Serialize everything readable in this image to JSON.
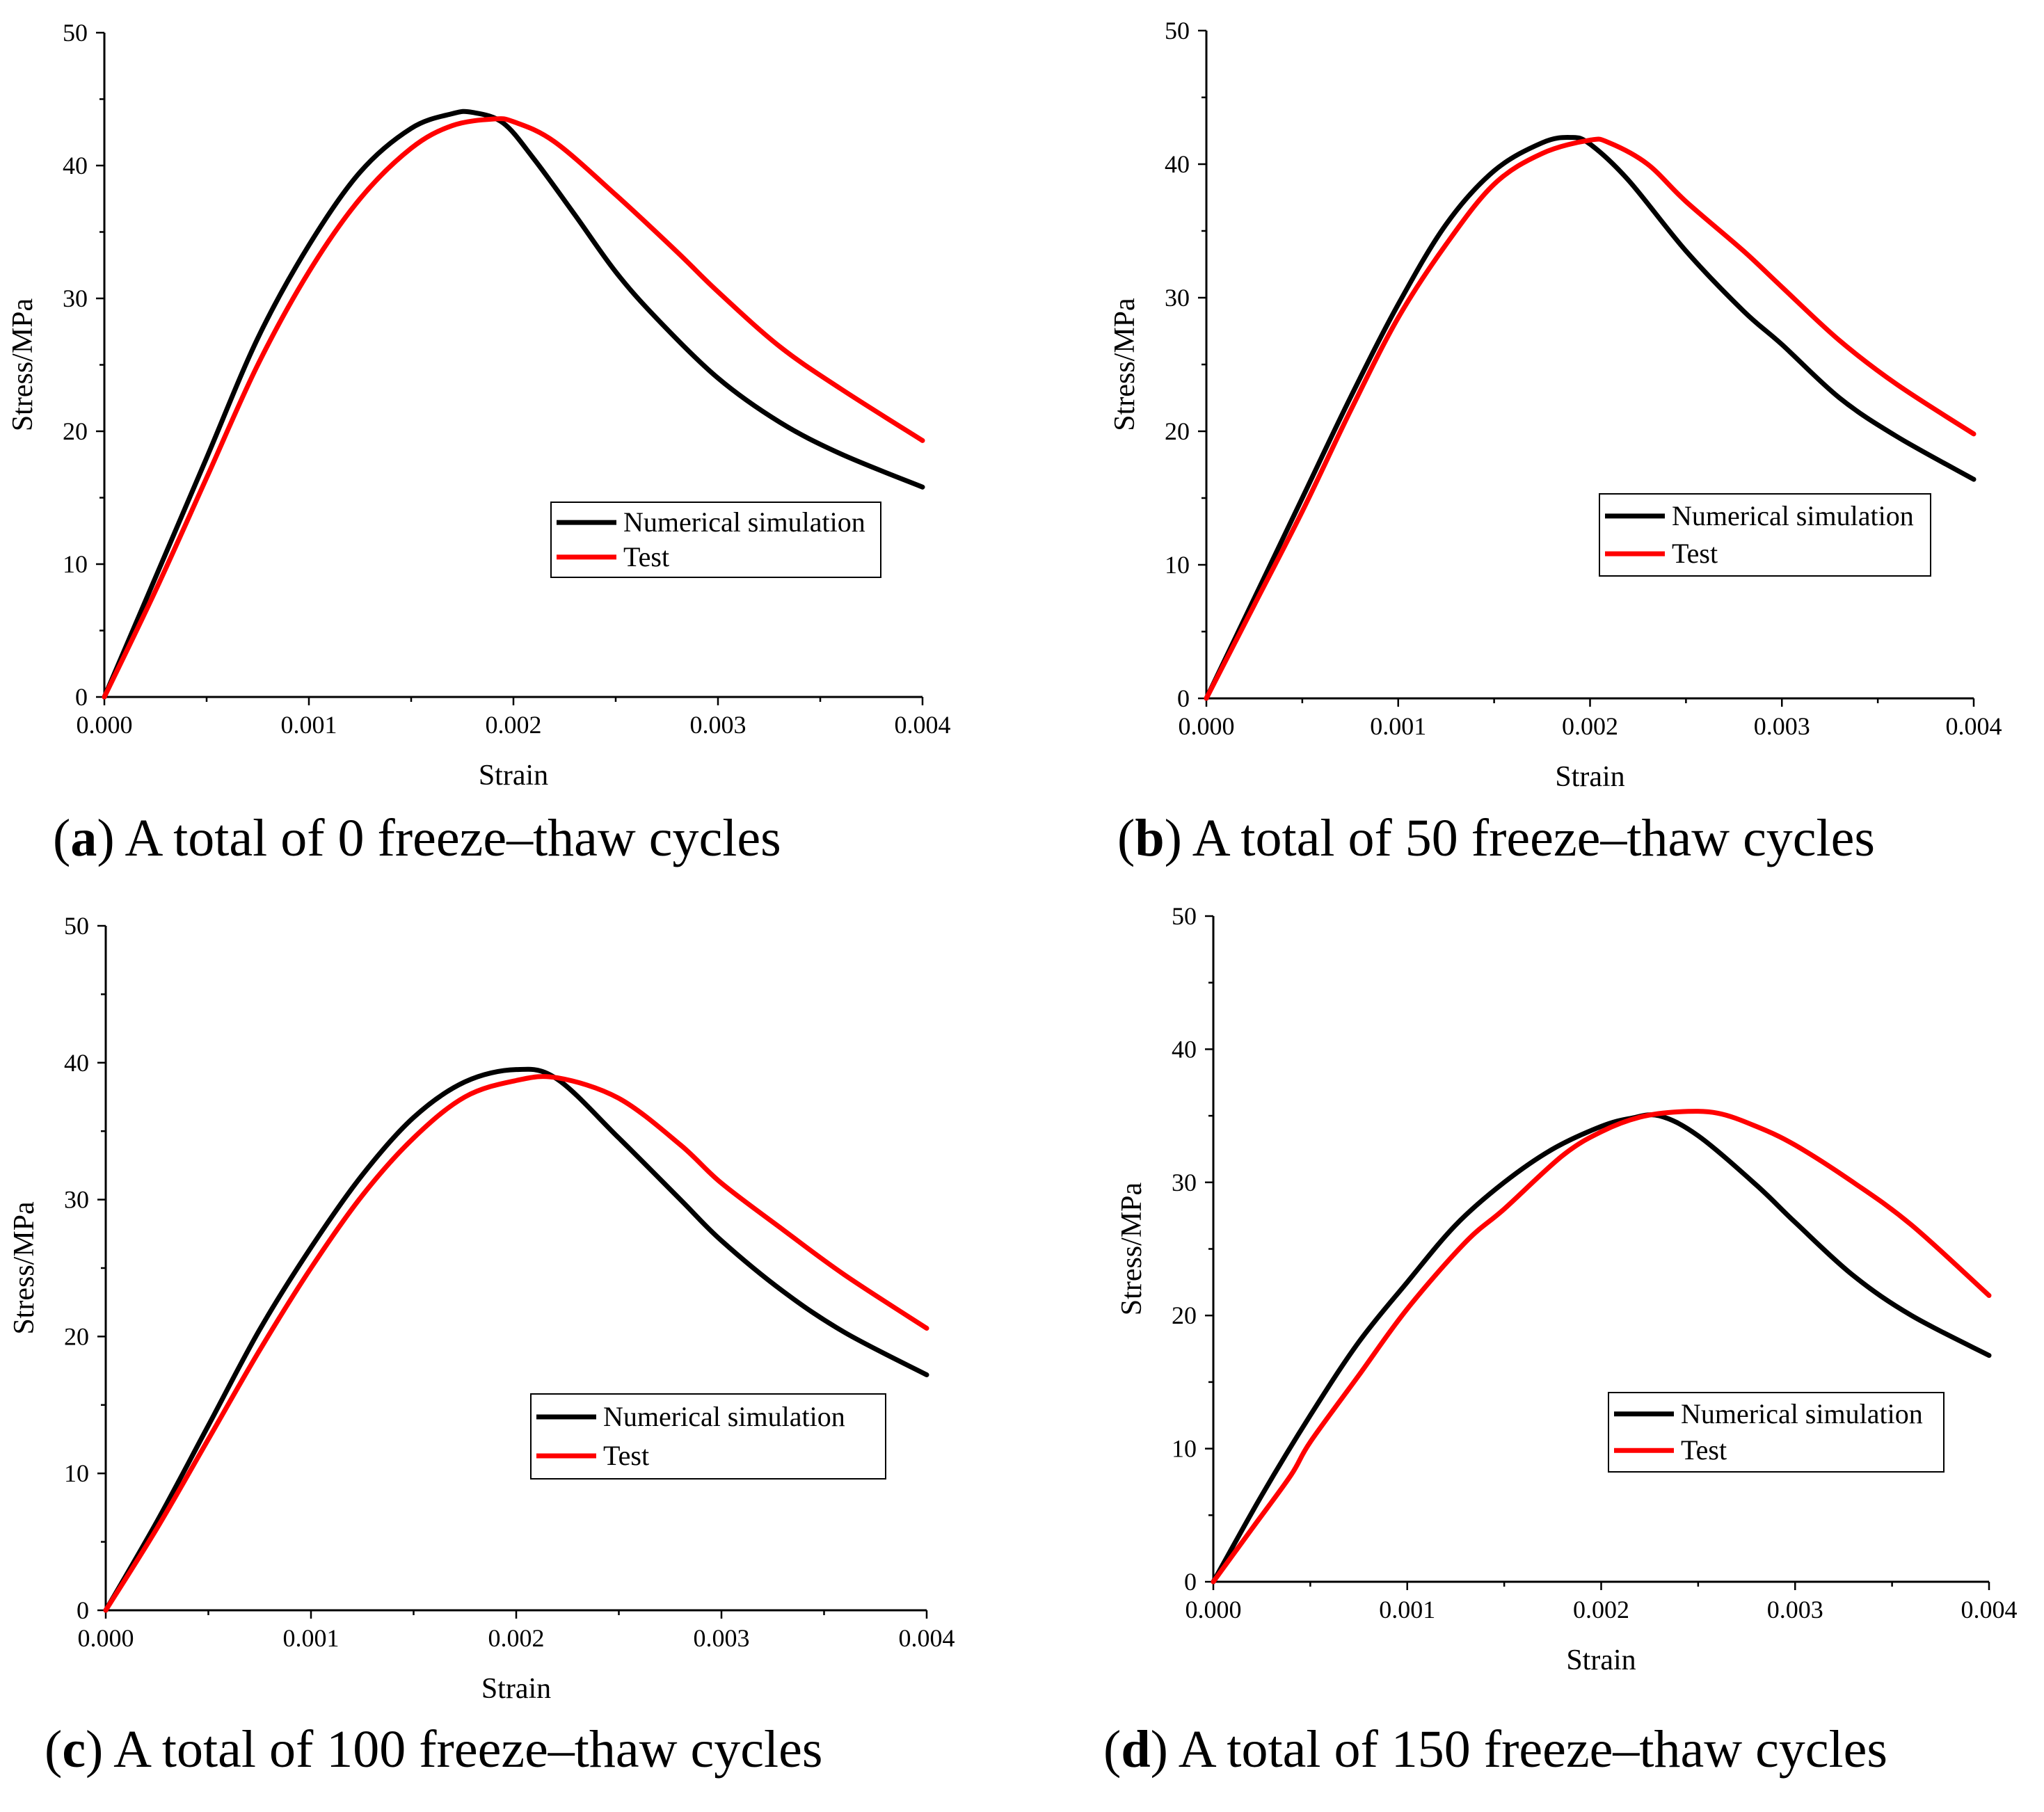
{
  "chart_data": [
    {
      "type": "line",
      "panel_letter": "a",
      "caption": "A total of 0 freeze–thaw cycles",
      "xlabel": "Strain",
      "ylabel": "Stress/MPa",
      "xlim": [
        0,
        0.004
      ],
      "ylim": [
        0,
        50
      ],
      "xticks": [
        "0.000",
        "0.001",
        "0.002",
        "0.003",
        "0.004"
      ],
      "yticks": [
        "0",
        "10",
        "20",
        "30",
        "40",
        "50"
      ],
      "legend": [
        "Numerical simulation",
        "Test"
      ],
      "series": [
        {
          "name": "Numerical simulation",
          "color": "#000000",
          "x": [
            0,
            0.00025,
            0.0005,
            0.00075,
            0.001,
            0.00125,
            0.0015,
            0.0017,
            0.0018,
            0.00195,
            0.0021,
            0.0023,
            0.0025,
            0.0027,
            0.003,
            0.0033,
            0.0036,
            0.004
          ],
          "y": [
            0,
            9,
            18,
            27,
            34,
            39.5,
            42.8,
            43.9,
            44.0,
            43.2,
            40.5,
            36.3,
            32,
            28.5,
            24,
            20.7,
            18.3,
            15.8
          ]
        },
        {
          "name": "Test",
          "color": "#ff0000",
          "x": [
            0,
            0.00025,
            0.0005,
            0.00075,
            0.001,
            0.00125,
            0.0015,
            0.0017,
            0.0019,
            0.002,
            0.0022,
            0.0025,
            0.0028,
            0.003,
            0.0033,
            0.0036,
            0.004
          ],
          "y": [
            0,
            8,
            16.5,
            25,
            32,
            37.5,
            41.3,
            43,
            43.5,
            43.3,
            41.8,
            37.8,
            33.5,
            30.5,
            26.4,
            23.2,
            19.3
          ]
        }
      ]
    },
    {
      "type": "line",
      "panel_letter": "b",
      "caption": "A total of 50 freeze–thaw cycles",
      "xlabel": "Strain",
      "ylabel": "Stress/MPa",
      "xlim": [
        0,
        0.004
      ],
      "ylim": [
        0,
        50
      ],
      "xticks": [
        "0.000",
        "0.001",
        "0.002",
        "0.003",
        "0.004"
      ],
      "yticks": [
        "0",
        "10",
        "20",
        "30",
        "40",
        "50"
      ],
      "legend": [
        "Numerical simulation",
        "Test"
      ],
      "series": [
        {
          "name": "Numerical simulation",
          "color": "#000000",
          "x": [
            0,
            0.00025,
            0.0005,
            0.00075,
            0.001,
            0.00125,
            0.0015,
            0.00175,
            0.0019,
            0.002,
            0.0022,
            0.0025,
            0.0028,
            0.003,
            0.0033,
            0.0036,
            0.004
          ],
          "y": [
            0,
            7.5,
            15,
            22.5,
            29.5,
            35.5,
            39.5,
            41.6,
            42.0,
            41.5,
            38.8,
            33.5,
            29,
            26.5,
            22.5,
            19.6,
            16.4
          ]
        },
        {
          "name": "Test",
          "color": "#ff0000",
          "x": [
            0,
            0.00025,
            0.0005,
            0.00075,
            0.001,
            0.00125,
            0.0015,
            0.00175,
            0.002,
            0.0021,
            0.0023,
            0.0025,
            0.0028,
            0.003,
            0.0033,
            0.0036,
            0.004
          ],
          "y": [
            0,
            7,
            14,
            21.5,
            28.5,
            34,
            38.5,
            40.8,
            41.8,
            41.6,
            40,
            37.2,
            33.5,
            30.8,
            26.8,
            23.5,
            19.8
          ]
        }
      ]
    },
    {
      "type": "line",
      "panel_letter": "c",
      "caption": "A total of 100 freeze–thaw cycles",
      "xlabel": "Strain",
      "ylabel": "Stress/MPa",
      "xlim": [
        0,
        0.004
      ],
      "ylim": [
        0,
        50
      ],
      "xticks": [
        "0.000",
        "0.001",
        "0.002",
        "0.003",
        "0.004"
      ],
      "yticks": [
        "0",
        "10",
        "20",
        "30",
        "40",
        "50"
      ],
      "legend": [
        "Numerical simulation",
        "Test"
      ],
      "series": [
        {
          "name": "Numerical simulation",
          "color": "#000000",
          "x": [
            0,
            0.00025,
            0.0005,
            0.00075,
            0.001,
            0.00125,
            0.0015,
            0.00175,
            0.002,
            0.0022,
            0.0025,
            0.0028,
            0.003,
            0.0033,
            0.0036,
            0.004
          ],
          "y": [
            0,
            6.5,
            13.5,
            20.5,
            26.5,
            31.8,
            36,
            38.6,
            39.5,
            38.8,
            34.5,
            30,
            27,
            23.3,
            20.3,
            17.2
          ]
        },
        {
          "name": "Test",
          "color": "#ff0000",
          "x": [
            0,
            0.00025,
            0.0005,
            0.00075,
            0.001,
            0.00125,
            0.0015,
            0.00175,
            0.002,
            0.0022,
            0.0025,
            0.0028,
            0.003,
            0.0033,
            0.0036,
            0.004
          ],
          "y": [
            0,
            6,
            12.5,
            19,
            25,
            30.3,
            34.5,
            37.5,
            38.7,
            38.9,
            37.4,
            34,
            31.2,
            27.8,
            24.5,
            20.6
          ]
        }
      ]
    },
    {
      "type": "line",
      "panel_letter": "d",
      "caption": "A total of 150 freeze–thaw cycles",
      "xlabel": "Strain",
      "ylabel": "Stress/MPa",
      "xlim": [
        0,
        0.004
      ],
      "ylim": [
        0,
        50
      ],
      "xticks": [
        "0.000",
        "0.001",
        "0.002",
        "0.003",
        "0.004"
      ],
      "yticks": [
        "0",
        "10",
        "20",
        "30",
        "40",
        "50"
      ],
      "legend": [
        "Numerical simulation",
        "Test"
      ],
      "series": [
        {
          "name": "Numerical simulation",
          "color": "#000000",
          "x": [
            0,
            0.00025,
            0.0005,
            0.00075,
            0.001,
            0.00125,
            0.0015,
            0.00175,
            0.002,
            0.00215,
            0.0023,
            0.0025,
            0.0028,
            0.003,
            0.0033,
            0.0036,
            0.004
          ],
          "y": [
            0,
            6.5,
            12.5,
            18,
            22.5,
            26.8,
            30,
            32.5,
            34.2,
            34.8,
            35,
            33.5,
            29.8,
            27,
            23,
            20,
            17
          ]
        },
        {
          "name": "Test",
          "color": "#ff0000",
          "x": [
            0,
            0.0002,
            0.0004,
            0.0005,
            0.00075,
            0.001,
            0.0013,
            0.0015,
            0.0018,
            0.002,
            0.0022,
            0.0024,
            0.0026,
            0.0028,
            0.003,
            0.0033,
            0.0036,
            0.004
          ],
          "y": [
            0,
            4,
            8,
            10.5,
            15.5,
            20.5,
            25.5,
            28,
            32,
            33.8,
            34.9,
            35.3,
            35.2,
            34.2,
            32.8,
            30,
            26.8,
            21.5
          ]
        }
      ]
    }
  ]
}
